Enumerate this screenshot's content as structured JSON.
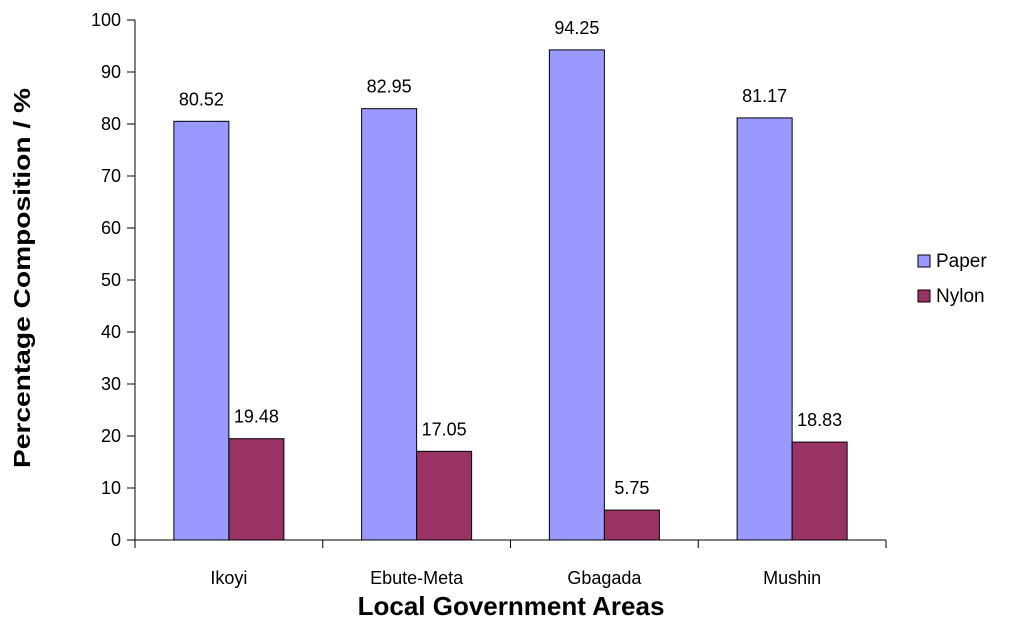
{
  "chart_data": {
    "type": "bar",
    "title": "",
    "xlabel": "Local Government Areas",
    "ylabel": "Percentage Composition / %",
    "categories": [
      "Ikoyi",
      "Ebute-Meta",
      "Gbagada",
      "Mushin"
    ],
    "series": [
      {
        "name": "Paper",
        "values": [
          80.52,
          82.95,
          94.25,
          81.17
        ],
        "color": "#9999ff",
        "value_labels": [
          "80.52",
          "82.95",
          "94.25",
          "81.17"
        ]
      },
      {
        "name": "Nylon",
        "values": [
          19.48,
          17.05,
          5.75,
          18.83
        ],
        "color": "#993366",
        "value_labels": [
          "19.48",
          "17.05",
          "5.75",
          "18.83"
        ]
      }
    ],
    "ylim": [
      0,
      100
    ],
    "yticks": [
      0,
      10,
      20,
      30,
      40,
      50,
      60,
      70,
      80,
      90,
      100
    ],
    "grid": false,
    "legend_position": "right"
  }
}
